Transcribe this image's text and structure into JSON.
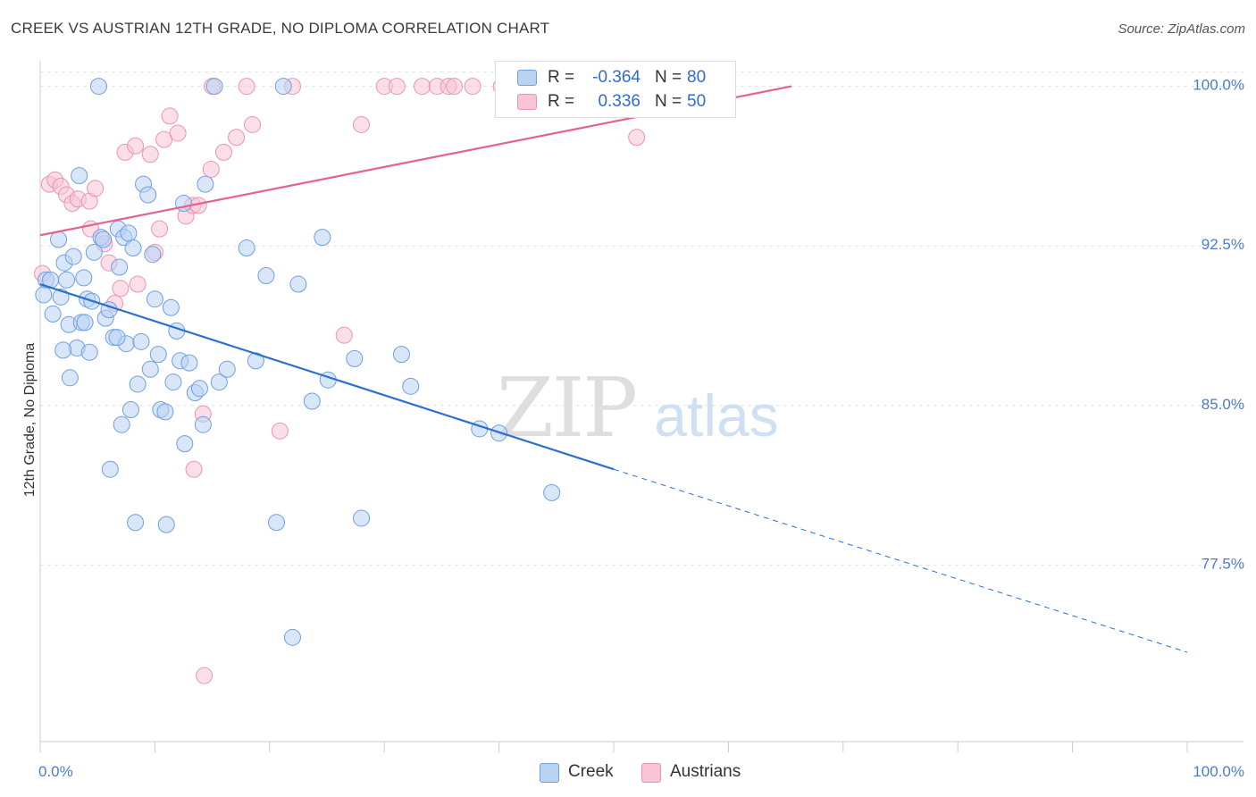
{
  "title": "CREEK VS AUSTRIAN 12TH GRADE, NO DIPLOMA CORRELATION CHART",
  "source": "Source: ZipAtlas.com",
  "watermark": {
    "zip": "ZIP",
    "atlas": "atlas"
  },
  "legend": {
    "creek": {
      "r_label": "R =",
      "r_value": "-0.364",
      "n_label": "N =",
      "n_value": "80"
    },
    "austrians": {
      "r_label": "R =",
      "r_value": "0.336",
      "n_label": "N =",
      "n_value": "50"
    }
  },
  "bottom_legend": {
    "creek": "Creek",
    "austrians": "Austrians"
  },
  "colors": {
    "creek_fill": "#b8d2f2",
    "creek_stroke": "#6f9fe0",
    "creek_line": "#2b6fd1",
    "austrians_fill": "#f8c4d4",
    "austrians_stroke": "#ec93b1",
    "austrians_line": "#e4628f",
    "tick_label": "#4a7cc9",
    "grid": "#e2e2e2"
  },
  "chart_data": {
    "type": "scatter",
    "title": "CREEK VS AUSTRIAN 12TH GRADE, NO DIPLOMA CORRELATION CHART",
    "xlabel": "",
    "ylabel": "12th Grade, No Diploma",
    "xlim": [
      0,
      100
    ],
    "ylim": [
      69.2,
      101.2
    ],
    "x_tick_labels": [
      "0.0%",
      "100.0%"
    ],
    "y_ticks": [
      100.0,
      92.5,
      85.0,
      77.5
    ],
    "y_tick_labels": [
      "100.0%",
      "92.5%",
      "85.0%",
      "77.5%"
    ],
    "grid": "horizontal dashed",
    "legend_position": "top-center",
    "series": [
      {
        "name": "Creek",
        "r": -0.364,
        "n": 80,
        "trend": {
          "x": [
            0,
            50
          ],
          "y": [
            90.7,
            82.0
          ],
          "extension_to": [
            100,
            73.4
          ]
        },
        "points": [
          [
            0.3,
            90.2
          ],
          [
            0.5,
            90.9
          ],
          [
            0.9,
            90.9
          ],
          [
            1.1,
            89.3
          ],
          [
            1.6,
            92.8
          ],
          [
            1.8,
            90.1
          ],
          [
            2.1,
            91.7
          ],
          [
            2.3,
            90.9
          ],
          [
            2.5,
            88.8
          ],
          [
            2.6,
            86.3
          ],
          [
            2.9,
            92.0
          ],
          [
            3.2,
            87.7
          ],
          [
            3.4,
            95.8
          ],
          [
            3.6,
            88.9
          ],
          [
            3.8,
            91.0
          ],
          [
            3.9,
            88.9
          ],
          [
            4.1,
            90.0
          ],
          [
            4.3,
            87.5
          ],
          [
            4.5,
            89.9
          ],
          [
            4.7,
            92.2
          ],
          [
            5.1,
            100.0
          ],
          [
            5.3,
            92.9
          ],
          [
            5.5,
            92.8
          ],
          [
            5.7,
            89.1
          ],
          [
            6.0,
            89.5
          ],
          [
            6.4,
            88.2
          ],
          [
            6.8,
            93.3
          ],
          [
            6.9,
            91.5
          ],
          [
            7.1,
            84.1
          ],
          [
            7.3,
            92.9
          ],
          [
            7.5,
            87.9
          ],
          [
            7.7,
            93.1
          ],
          [
            7.9,
            84.8
          ],
          [
            8.1,
            92.4
          ],
          [
            8.5,
            86.0
          ],
          [
            8.8,
            88.0
          ],
          [
            9.0,
            95.4
          ],
          [
            9.4,
            94.9
          ],
          [
            9.6,
            86.7
          ],
          [
            10.0,
            90.0
          ],
          [
            10.3,
            87.4
          ],
          [
            10.5,
            84.8
          ],
          [
            10.9,
            84.7
          ],
          [
            11.4,
            89.6
          ],
          [
            11.6,
            86.1
          ],
          [
            11.9,
            88.5
          ],
          [
            12.2,
            87.1
          ],
          [
            12.6,
            83.2
          ],
          [
            13.0,
            87.0
          ],
          [
            13.5,
            85.6
          ],
          [
            13.9,
            85.8
          ],
          [
            14.2,
            84.1
          ],
          [
            14.4,
            95.4
          ],
          [
            15.2,
            100.0
          ],
          [
            15.6,
            86.1
          ],
          [
            16.3,
            86.7
          ],
          [
            18.8,
            87.1
          ],
          [
            19.7,
            91.1
          ],
          [
            20.6,
            79.5
          ],
          [
            21.2,
            100.0
          ],
          [
            22.0,
            74.1
          ],
          [
            22.5,
            90.7
          ],
          [
            23.7,
            85.2
          ],
          [
            24.6,
            92.9
          ],
          [
            25.1,
            86.2
          ],
          [
            27.4,
            87.2
          ],
          [
            28.0,
            79.7
          ],
          [
            31.5,
            87.4
          ],
          [
            32.3,
            85.9
          ],
          [
            38.3,
            83.9
          ],
          [
            40.0,
            83.7
          ],
          [
            44.6,
            80.9
          ],
          [
            6.1,
            82.0
          ],
          [
            8.3,
            79.5
          ],
          [
            11.0,
            79.4
          ],
          [
            18.0,
            92.4
          ],
          [
            12.5,
            94.5
          ],
          [
            6.7,
            88.2
          ],
          [
            2.0,
            87.6
          ],
          [
            9.8,
            92.1
          ]
        ]
      },
      {
        "name": "Austrians",
        "r": 0.336,
        "n": 50,
        "trend": {
          "x": [
            0,
            65.5
          ],
          "y": [
            93.0,
            100.0
          ]
        },
        "points": [
          [
            0.2,
            91.2
          ],
          [
            0.8,
            95.4
          ],
          [
            1.3,
            95.6
          ],
          [
            1.8,
            95.3
          ],
          [
            2.3,
            94.9
          ],
          [
            2.8,
            94.5
          ],
          [
            3.3,
            94.7
          ],
          [
            4.3,
            94.6
          ],
          [
            4.4,
            93.3
          ],
          [
            4.8,
            95.2
          ],
          [
            5.6,
            92.6
          ],
          [
            6.0,
            91.7
          ],
          [
            6.5,
            89.8
          ],
          [
            7.0,
            90.5
          ],
          [
            7.4,
            96.9
          ],
          [
            8.3,
            97.2
          ],
          [
            8.5,
            90.7
          ],
          [
            9.6,
            96.8
          ],
          [
            10.0,
            92.2
          ],
          [
            10.4,
            93.3
          ],
          [
            10.8,
            97.5
          ],
          [
            11.3,
            98.6
          ],
          [
            12.0,
            97.8
          ],
          [
            12.7,
            93.9
          ],
          [
            13.3,
            94.4
          ],
          [
            13.8,
            94.4
          ],
          [
            14.2,
            84.6
          ],
          [
            14.9,
            96.1
          ],
          [
            15.0,
            100.0
          ],
          [
            16.0,
            96.9
          ],
          [
            17.1,
            97.6
          ],
          [
            18.0,
            100.0
          ],
          [
            18.5,
            98.2
          ],
          [
            20.9,
            83.8
          ],
          [
            22.0,
            100.0
          ],
          [
            26.5,
            88.3
          ],
          [
            28.0,
            98.2
          ],
          [
            30.0,
            100.0
          ],
          [
            31.1,
            100.0
          ],
          [
            33.3,
            100.0
          ],
          [
            34.6,
            100.0
          ],
          [
            35.6,
            100.0
          ],
          [
            36.1,
            100.0
          ],
          [
            37.7,
            100.0
          ],
          [
            40.2,
            100.0
          ],
          [
            44.0,
            100.0
          ],
          [
            46.8,
            100.0
          ],
          [
            52.0,
            97.6
          ],
          [
            13.4,
            82.0
          ],
          [
            14.3,
            72.3
          ]
        ]
      }
    ]
  }
}
